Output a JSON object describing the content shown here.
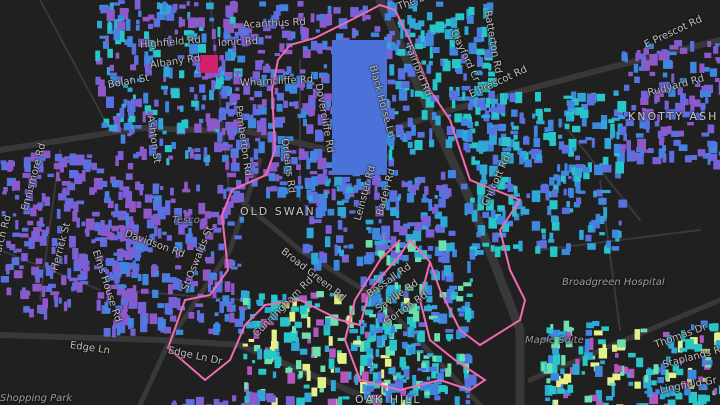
{
  "map": {
    "boundary_color": "#f06bb0",
    "building_palette": [
      "#8f58c9",
      "#7a5fd6",
      "#5a6fe0",
      "#3f86e0",
      "#2fa8d8",
      "#26c6c9",
      "#6ee0b0",
      "#e4f08a",
      "#b455c0",
      "#d0206a"
    ],
    "background_color": "#202020",
    "road_color": "#363636",
    "street_labels": [
      "Acanthus Rd",
      "Ionic Rd",
      "Highfield Rd",
      "Albany Rd",
      "Bolan St",
      "Wharncliffe Rd",
      "Dovercliffe Rd",
      "Pemberton Rd",
      "Orleans Rd",
      "Ashton St",
      "Black Horse Ln",
      "Fairford Rd",
      "Clayford Cr",
      "Batterton Rd",
      "The B",
      "E Prescot Rd",
      "E Prescot Rd",
      "Rudyard Rd",
      "Chilcott Rd",
      "Davidson Rd",
      "Elms House Rd",
      "Ennismore Rd",
      "Church Rd",
      "Herrick St",
      "St Oswalds St",
      "Broad Green Rd",
      "Edge Ln",
      "Edge Ln Dr",
      "Cunningham Rd",
      "Bessall Rd",
      "Saville Rd",
      "Gorton Rd",
      "Leinster Rd",
      "Baden Rd",
      "Thomas Dr",
      "Staplands Rd",
      "Lingfield Gr"
    ],
    "area_labels": [
      "OLD SWAN",
      "KNOTTY ASH",
      "OAK HILL"
    ],
    "poi_labels": [
      "Tesco",
      "Broadgreen Hospital",
      "Maple Suite",
      "Shopping Park"
    ]
  }
}
